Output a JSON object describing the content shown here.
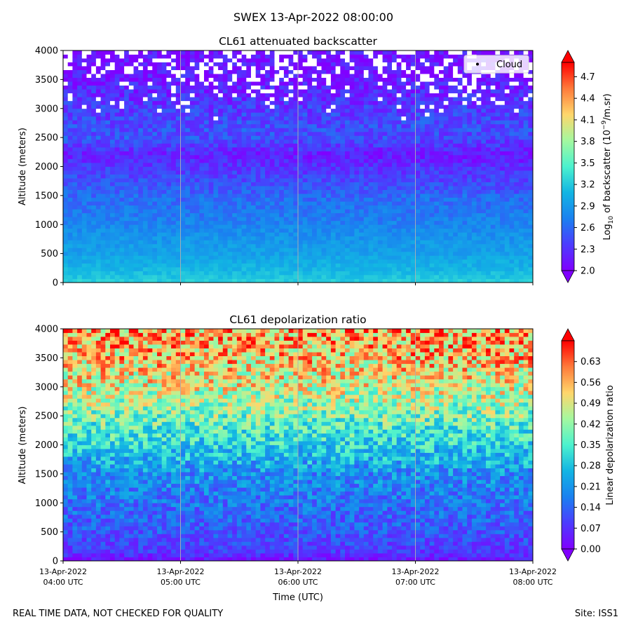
{
  "suptitle": "SWEX 13-Apr-2022 08:00:00",
  "footer": {
    "left": "REAL TIME DATA, NOT CHECKED FOR QUALITY",
    "right": "Site: ISS1"
  },
  "chart_data": [
    {
      "type": "heatmap",
      "title": "CL61 attenuated backscatter",
      "ylabel": "Altitude (meters)",
      "xlabel": "",
      "ylim": [
        0,
        4000
      ],
      "yticks": [
        "0",
        "500",
        "1000",
        "1500",
        "2000",
        "2500",
        "3000",
        "3500",
        "4000"
      ],
      "xticks": [],
      "grid": "vertical lines at hourly ticks",
      "legend": {
        "position": "upper right",
        "entries": [
          "Cloud"
        ]
      },
      "colorbar": {
        "label": "Log10 of backscatter (10^-9/m.sr)",
        "range": [
          2.0,
          4.9
        ],
        "ticks": [
          "2.0",
          "2.3",
          "2.6",
          "2.9",
          "3.2",
          "3.5",
          "3.8",
          "4.1",
          "4.4",
          "4.7"
        ],
        "colormap": "rainbow",
        "extend": "both"
      },
      "profile": [
        {
          "altitude": 0,
          "value": 3.25
        },
        {
          "altitude": 200,
          "value": 3.1
        },
        {
          "altitude": 500,
          "value": 2.95
        },
        {
          "altitude": 800,
          "value": 2.85
        },
        {
          "altitude": 1000,
          "value": 2.75
        },
        {
          "altitude": 1500,
          "value": 2.6
        },
        {
          "altitude": 2000,
          "value": 2.35
        },
        {
          "altitude": 2200,
          "value": 2.2
        },
        {
          "altitude": 2500,
          "value": 2.5
        },
        {
          "altitude": 3000,
          "value": 2.35
        },
        {
          "altitude": 3500,
          "value": 2.15
        },
        {
          "altitude": 4000,
          "value": 2.05
        }
      ]
    },
    {
      "type": "heatmap",
      "title": "CL61 depolarization ratio",
      "ylabel": "Altitude (meters)",
      "xlabel": "Time (UTC)",
      "ylim": [
        0,
        4000
      ],
      "yticks": [
        "0",
        "500",
        "1000",
        "1500",
        "2000",
        "2500",
        "3000",
        "3500",
        "4000"
      ],
      "xticks": [
        {
          "date": "13-Apr-2022",
          "time": "04:00 UTC"
        },
        {
          "date": "13-Apr-2022",
          "time": "05:00 UTC"
        },
        {
          "date": "13-Apr-2022",
          "time": "06:00 UTC"
        },
        {
          "date": "13-Apr-2022",
          "time": "07:00 UTC"
        },
        {
          "date": "13-Apr-2022",
          "time": "08:00 UTC"
        }
      ],
      "grid": "vertical lines at hourly ticks",
      "colorbar": {
        "label": "Linear depolarization ratio",
        "range": [
          0.0,
          0.7
        ],
        "ticks": [
          "0.00",
          "0.07",
          "0.14",
          "0.21",
          "0.28",
          "0.35",
          "0.42",
          "0.49",
          "0.56",
          "0.63"
        ],
        "colormap": "rainbow",
        "extend": "both"
      },
      "profile": [
        {
          "altitude": 0,
          "value": 0.02
        },
        {
          "altitude": 150,
          "value": 0.08
        },
        {
          "altitude": 500,
          "value": 0.12
        },
        {
          "altitude": 1000,
          "value": 0.16
        },
        {
          "altitude": 1500,
          "value": 0.2
        },
        {
          "altitude": 2000,
          "value": 0.3
        },
        {
          "altitude": 2500,
          "value": 0.4
        },
        {
          "altitude": 3000,
          "value": 0.48
        },
        {
          "altitude": 3500,
          "value": 0.54
        },
        {
          "altitude": 4000,
          "value": 0.58
        }
      ]
    }
  ]
}
